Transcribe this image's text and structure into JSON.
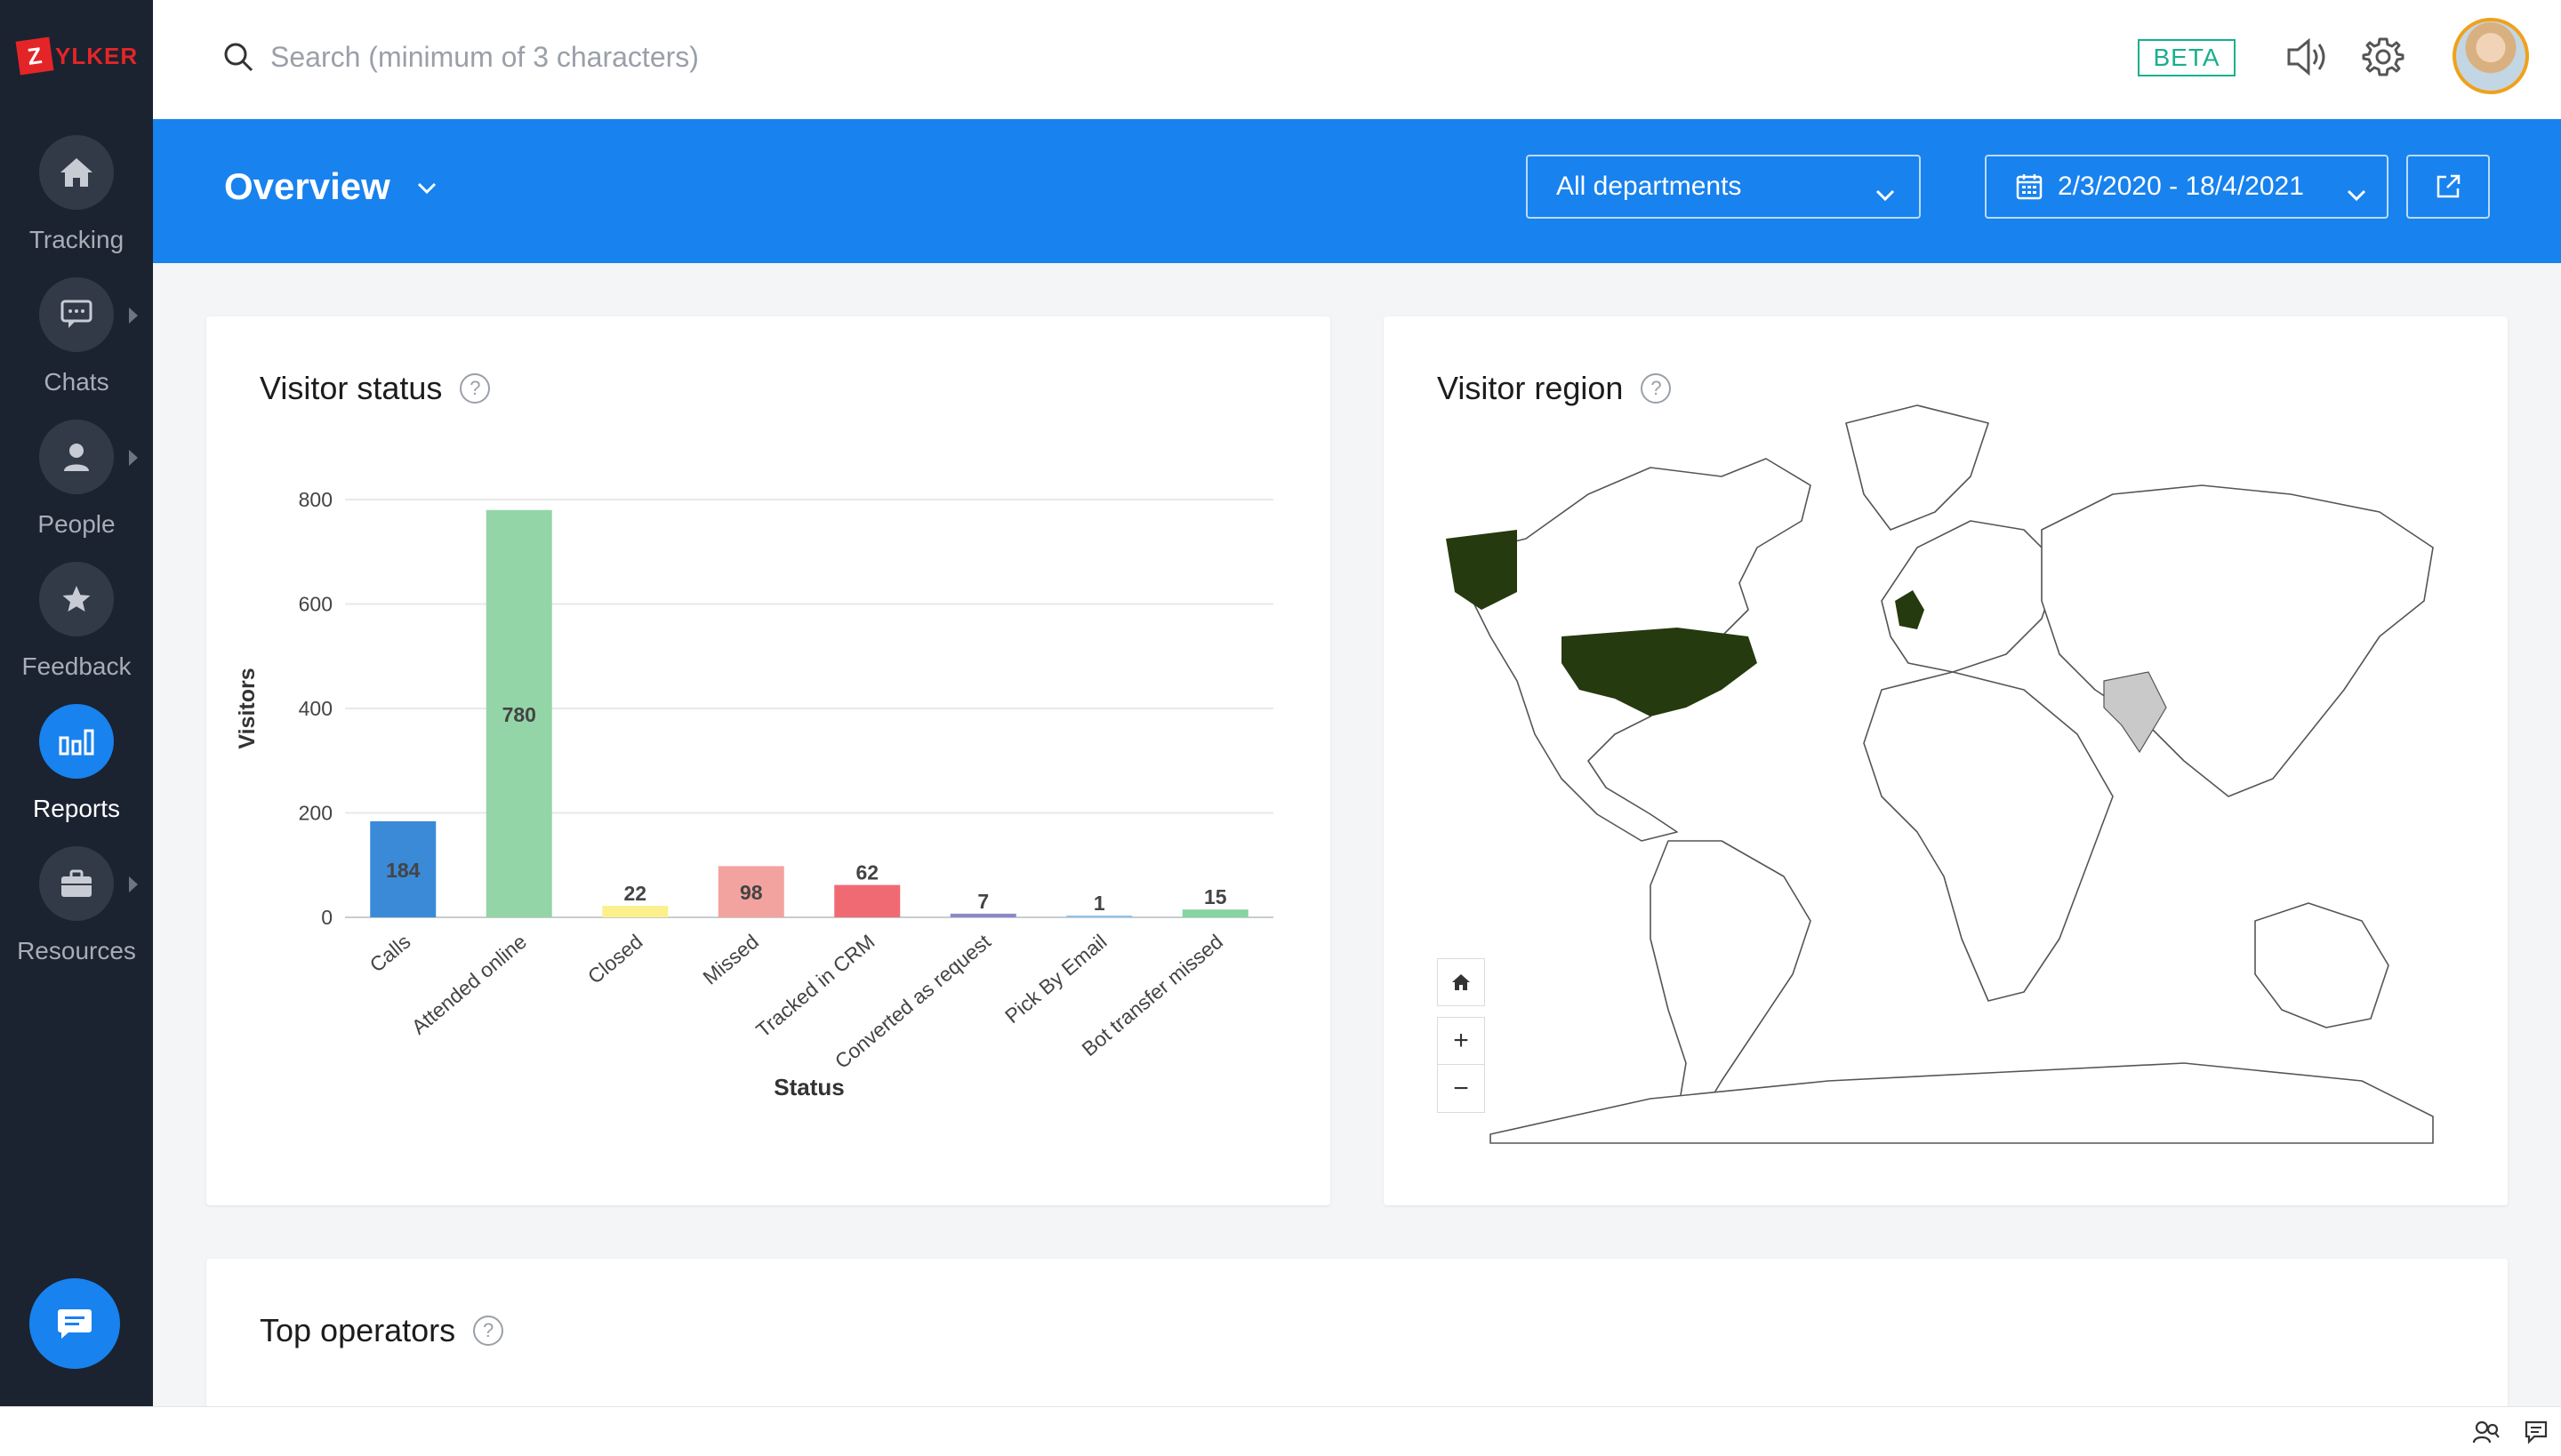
{
  "app": {
    "logo_initial": "Z",
    "logo_rest": "YLKER"
  },
  "sidebar": {
    "items": [
      {
        "label": "Tracking",
        "icon": "home-icon"
      },
      {
        "label": "Chats",
        "icon": "chat-bubble-icon"
      },
      {
        "label": "People",
        "icon": "person-icon"
      },
      {
        "label": "Feedback",
        "icon": "star-icon"
      },
      {
        "label": "Reports",
        "icon": "bar-chart-icon",
        "active": true
      },
      {
        "label": "Resources",
        "icon": "briefcase-icon"
      }
    ]
  },
  "topbar": {
    "search_placeholder": "Search (minimum of 3 characters)",
    "beta_label": "BETA"
  },
  "header": {
    "title": "Overview",
    "department": "All departments",
    "date_range": "2/3/2020 - 18/4/2021"
  },
  "cards": {
    "visitor_status": {
      "title": "Visitor status",
      "help": "?"
    },
    "visitor_region": {
      "title": "Visitor region",
      "help": "?"
    },
    "top_operators": {
      "title": "Top operators",
      "help": "?"
    }
  },
  "map": {
    "zoom_in": "+",
    "zoom_out": "−"
  },
  "colors": {
    "accent": "#1882ee",
    "sidebar": "#1b2230",
    "beta": "#18b08c",
    "map_highlight": "#253a0e"
  },
  "chart_data": {
    "type": "bar",
    "categories": [
      "Calls",
      "Attended online",
      "Closed",
      "Missed",
      "Tracked in CRM",
      "Converted as request",
      "Pick By Email",
      "Bot transfer missed"
    ],
    "values": [
      184,
      780,
      22,
      98,
      62,
      7,
      1,
      15
    ],
    "colors": [
      "#3a8ad8",
      "#93d5a7",
      "#fbf08c",
      "#f2a3a0",
      "#f06a74",
      "#8a89c8",
      "#8fc3ea",
      "#86d4a1"
    ],
    "xlabel": "Status",
    "ylabel": "Visitors",
    "ylim": [
      0,
      800
    ],
    "yticks": [
      0,
      200,
      400,
      600,
      800
    ],
    "grid": true
  }
}
